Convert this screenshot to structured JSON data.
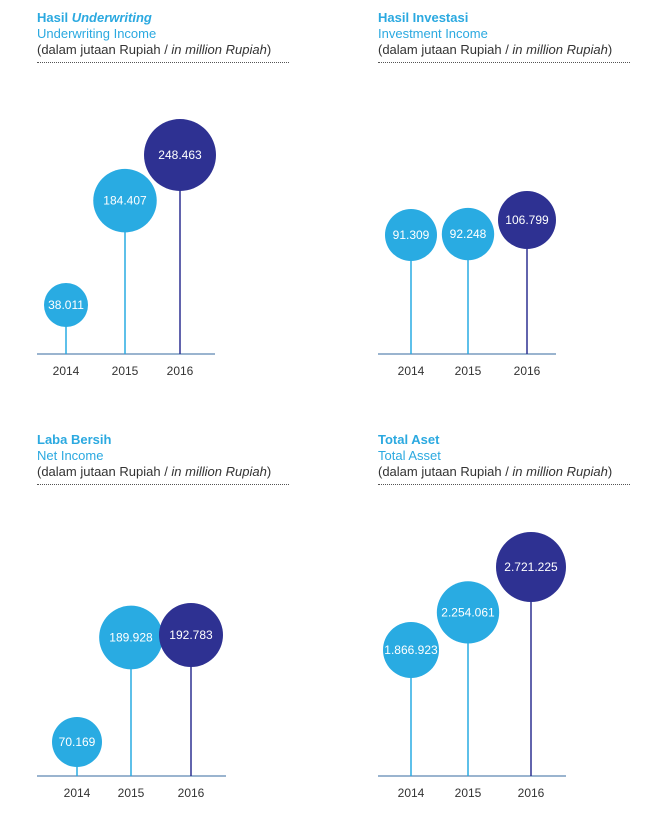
{
  "colors": {
    "title": "#2BA9E0",
    "light": "#29ABE2",
    "dark": "#2E3192",
    "axis": "#5E86B2",
    "text": "#333333"
  },
  "common": {
    "unit_id": "(dalam jutaan Rupiah / ",
    "unit_en": "in million Rupiah",
    "unit_close": ")"
  },
  "chart_data": [
    {
      "type": "scatter",
      "title_plain": "Hasil ",
      "title_italic": "Underwriting",
      "subtitle": "Underwriting Income",
      "categories": [
        "2014",
        "2015",
        "2016"
      ],
      "values": [
        38011,
        184407,
        248463
      ],
      "labels": [
        "38.011",
        "184.407",
        "248.463"
      ]
    },
    {
      "type": "scatter",
      "title_plain": "Hasil Investasi",
      "title_italic": "",
      "subtitle": "Investment Income",
      "categories": [
        "2014",
        "2015",
        "2016"
      ],
      "values": [
        91309,
        92248,
        106799
      ],
      "labels": [
        "91.309",
        "92.248",
        "106.799"
      ]
    },
    {
      "type": "scatter",
      "title_plain": "Laba Bersih",
      "title_italic": "",
      "subtitle": "Net Income",
      "categories": [
        "2014",
        "2015",
        "2016"
      ],
      "values": [
        70169,
        189928,
        192783
      ],
      "labels": [
        "70.169",
        "189.928",
        "192.783"
      ]
    },
    {
      "type": "scatter",
      "title_plain": "Total Aset",
      "title_italic": "",
      "subtitle": "Total Asset",
      "categories": [
        "2014",
        "2015",
        "2016"
      ],
      "values": [
        1866923,
        2254061,
        2721225
      ],
      "labels": [
        "1.866.923",
        "2.254.061",
        "2.721.225"
      ]
    }
  ]
}
